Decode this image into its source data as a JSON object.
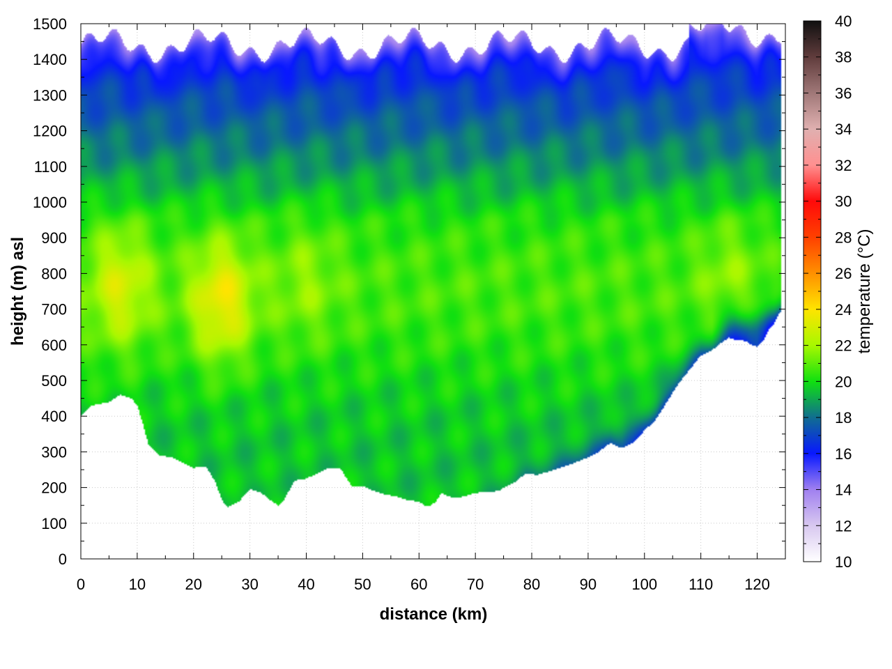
{
  "chart_data": {
    "type": "heatmap",
    "title": "",
    "xlabel": "distance (km)",
    "ylabel": "height (m) asl",
    "colorbar_label": "temperature (°C)",
    "xlim": [
      0,
      125
    ],
    "ylim": [
      0,
      1500
    ],
    "clim": [
      10,
      40
    ],
    "grid": true,
    "x_ticks": [
      "0",
      "10",
      "20",
      "30",
      "40",
      "50",
      "60",
      "70",
      "80",
      "90",
      "100",
      "110",
      "120"
    ],
    "y_ticks": [
      "0",
      "100",
      "200",
      "300",
      "400",
      "500",
      "600",
      "700",
      "800",
      "900",
      "1000",
      "1100",
      "1200",
      "1300",
      "1400",
      "1500"
    ],
    "cb_ticks": [
      "10",
      "12",
      "14",
      "16",
      "18",
      "20",
      "22",
      "24",
      "26",
      "28",
      "30",
      "32",
      "34",
      "36",
      "38",
      "40"
    ],
    "colormap": [
      [
        10,
        "#ffffff"
      ],
      [
        12,
        "#d8c8f0"
      ],
      [
        14,
        "#a080f0"
      ],
      [
        16,
        "#0818ff"
      ],
      [
        18,
        "#106e90"
      ],
      [
        20,
        "#10e010"
      ],
      [
        22,
        "#a8f800"
      ],
      [
        24,
        "#ffe400"
      ],
      [
        26,
        "#ff9000"
      ],
      [
        28,
        "#ff4000"
      ],
      [
        30,
        "#ff0a0a"
      ],
      [
        32,
        "#ff9090"
      ],
      [
        34,
        "#e0b0b0"
      ],
      [
        36,
        "#a07878"
      ],
      [
        38,
        "#603c3c"
      ],
      [
        40,
        "#101010"
      ]
    ],
    "profile_distance_km": [
      0,
      2,
      5,
      7,
      9,
      10,
      11,
      12,
      14,
      16,
      18,
      20,
      22,
      23,
      24,
      25,
      26,
      28,
      30,
      32,
      34,
      35,
      36,
      38,
      40,
      42,
      44,
      46,
      47,
      48,
      50,
      52,
      54,
      56,
      58,
      60,
      61,
      62,
      63,
      64,
      66,
      68,
      70,
      74,
      77,
      79,
      81,
      84,
      87,
      90,
      92,
      93,
      94,
      96,
      98,
      100,
      102,
      104,
      106,
      108,
      110,
      112,
      114,
      115,
      116,
      118,
      119,
      120,
      121,
      122,
      123,
      124,
      125
    ],
    "ground_height_m": [
      400,
      430,
      440,
      460,
      450,
      430,
      380,
      320,
      290,
      285,
      270,
      255,
      260,
      240,
      210,
      165,
      145,
      160,
      195,
      185,
      160,
      150,
      165,
      220,
      225,
      240,
      255,
      255,
      230,
      205,
      205,
      190,
      180,
      175,
      165,
      160,
      150,
      150,
      160,
      185,
      170,
      175,
      185,
      190,
      215,
      240,
      235,
      250,
      265,
      285,
      300,
      315,
      325,
      310,
      325,
      360,
      390,
      440,
      490,
      530,
      570,
      585,
      610,
      620,
      615,
      610,
      600,
      595,
      610,
      640,
      660,
      690,
      710
    ],
    "temperature_field_note_free": true,
    "warm_cores": [
      {
        "distance_km": 7,
        "height_m": 760,
        "temp_c": 22.8
      },
      {
        "distance_km": 25,
        "height_m": 720,
        "temp_c": 23.5
      },
      {
        "distance_km": 40,
        "height_m": 780,
        "temp_c": 21.5
      },
      {
        "distance_km": 115,
        "height_m": 800,
        "temp_c": 21.5
      }
    ]
  }
}
